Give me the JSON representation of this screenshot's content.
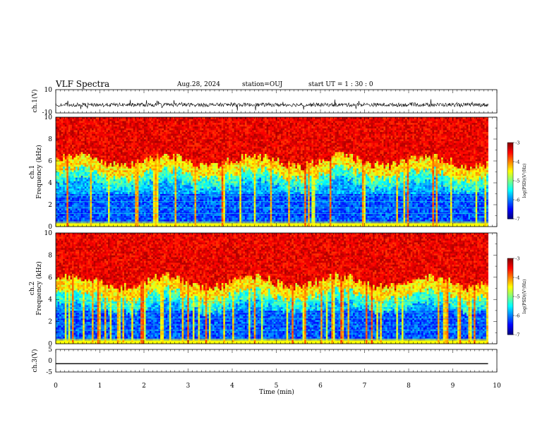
{
  "header": {
    "title": "VLF Spectra",
    "date": "Aug.28, 2024",
    "station": "station=OUJ",
    "start": "start  UT =  1 : 30 : 0"
  },
  "chart_data": [
    {
      "type": "line",
      "panel": "ch1-waveform",
      "ylabel": "ch.1(V)",
      "ylim": [
        -10,
        10
      ],
      "yticks": [
        "10",
        "-10"
      ],
      "xlim": [
        0,
        10
      ],
      "description_level": -3,
      "data_end_min": 9.8
    },
    {
      "type": "heatmap",
      "panel": "ch1-spectrogram",
      "ylabel": [
        "ch.1",
        "Frequency (kHz)"
      ],
      "ylim": [
        0,
        10
      ],
      "yticks": [
        "0",
        "2",
        "4",
        "6",
        "8",
        "10"
      ],
      "xlim": [
        0,
        10
      ],
      "data_end_min": 9.8,
      "colorbar": {
        "label": "log(PSD)(V²/Hz)",
        "range": [
          -7,
          -3
        ],
        "ticks": [
          "-3",
          "-4",
          "-5",
          "-6",
          "-7"
        ]
      }
    },
    {
      "type": "heatmap",
      "panel": "ch2-spectrogram",
      "ylabel": [
        "ch.2",
        "Frequency (kHz)"
      ],
      "ylim": [
        0,
        10
      ],
      "yticks": [
        "0",
        "2",
        "4",
        "6",
        "8",
        "10"
      ],
      "xlim": [
        0,
        10
      ],
      "data_end_min": 9.8,
      "colorbar": {
        "label": "log(PSD)(V²/Hz)",
        "range": [
          -7,
          -3
        ],
        "ticks": [
          "-3",
          "-4",
          "-5",
          "-6",
          "-7"
        ]
      }
    },
    {
      "type": "line",
      "panel": "ch3-waveform",
      "ylabel": "ch.3(V)",
      "ylim": [
        -5,
        5
      ],
      "yticks": [
        "5",
        "0",
        "-5"
      ],
      "xlim": [
        0,
        10
      ],
      "x": [
        0,
        9.8
      ],
      "y": [
        -1.3,
        -1.3
      ],
      "xlabel": "Time (min)",
      "xticks": [
        "0",
        "1",
        "2",
        "3",
        "4",
        "5",
        "6",
        "7",
        "8",
        "9",
        "10"
      ]
    }
  ]
}
